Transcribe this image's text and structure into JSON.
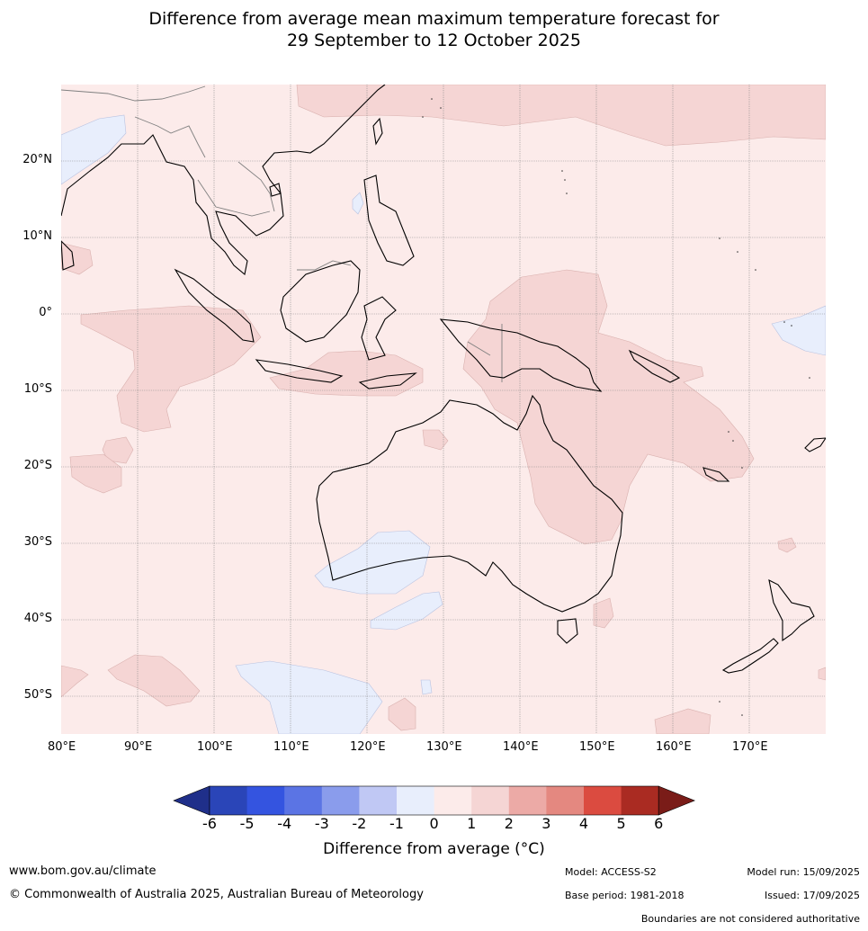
{
  "title": {
    "line1": "Difference from average mean maximum temperature forecast for",
    "line2": "29 September to 12 October 2025"
  },
  "map": {
    "lat_labels": [
      "20°N",
      "10°N",
      "0°",
      "10°S",
      "20°S",
      "30°S",
      "40°S",
      "50°S"
    ],
    "lon_labels": [
      "80°E",
      "90°E",
      "100°E",
      "110°E",
      "120°E",
      "130°E",
      "140°E",
      "150°E",
      "160°E",
      "170°E"
    ],
    "colors": {
      "land_outline": "#000000",
      "border": "#808080",
      "grid": "#888888",
      "anom_0_1": "#fcebea",
      "anom_1_2": "#f5d5d4",
      "anom_m1_0": "#e8eefc"
    }
  },
  "colorbar": {
    "ticks": [
      "-6",
      "-5",
      "-4",
      "-3",
      "-2",
      "-1",
      "0",
      "1",
      "2",
      "3",
      "4",
      "5",
      "6"
    ],
    "colors": [
      "#1f2f8a",
      "#2a45b8",
      "#3454e0",
      "#5b74e4",
      "#8a9cec",
      "#c0c8f4",
      "#e8eefc",
      "#fcebea",
      "#f5d5d4",
      "#ecaaa6",
      "#e48880",
      "#db4b40",
      "#aa2b22",
      "#7a1c18"
    ],
    "label": "Difference from average (°C)"
  },
  "footer": {
    "website": "www.bom.gov.au/climate",
    "copyright": "© Commonwealth of Australia 2025, Australian Bureau of Meteorology",
    "model": "Model: ACCESS-S2",
    "base_period": "Base period: 1981-2018",
    "model_run": "Model run: 15/09/2025",
    "issued": "Issued: 17/09/2025",
    "disclaimer": "Boundaries are not considered authoritative"
  }
}
